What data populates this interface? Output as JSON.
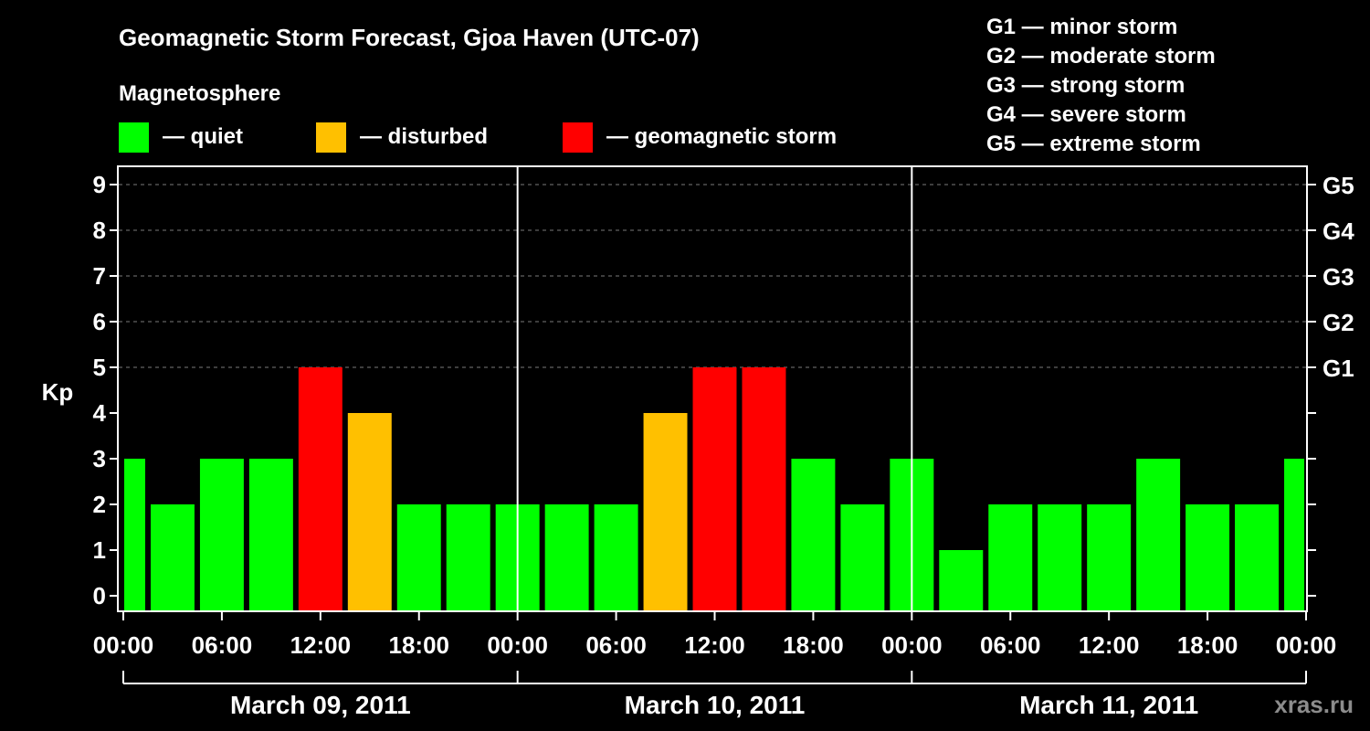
{
  "chart_data": {
    "type": "bar",
    "title": "Geomagnetic Storm Forecast, Gjoa Haven (UTC-07)",
    "ylabel": "Kp",
    "ylim": [
      0,
      9
    ],
    "yticks": [
      "0",
      "1",
      "2",
      "3",
      "4",
      "5",
      "6",
      "7",
      "8",
      "9"
    ],
    "right_ticks": [
      {
        "kp": 5,
        "label": "G1"
      },
      {
        "kp": 6,
        "label": "G2"
      },
      {
        "kp": 7,
        "label": "G3"
      },
      {
        "kp": 8,
        "label": "G4"
      },
      {
        "kp": 9,
        "label": "G5"
      }
    ],
    "x_hours_total": 72,
    "first_bar_start_hour": -1.5,
    "bar_interval_hours": 3,
    "xtick_labels": [
      "00:00",
      "06:00",
      "12:00",
      "18:00",
      "00:00",
      "06:00",
      "12:00",
      "18:00",
      "00:00",
      "06:00",
      "12:00",
      "18:00",
      "00:00"
    ],
    "days": [
      "March 09, 2011",
      "March 10, 2011",
      "March 11, 2011"
    ],
    "values": [
      3,
      2,
      3,
      3,
      5,
      4,
      2,
      2,
      2,
      2,
      2,
      4,
      5,
      5,
      3,
      2,
      3,
      1,
      2,
      2,
      2,
      3,
      2,
      2,
      3
    ],
    "levels": [
      "quiet",
      "quiet",
      "quiet",
      "quiet",
      "storm",
      "disturbed",
      "quiet",
      "quiet",
      "quiet",
      "quiet",
      "quiet",
      "disturbed",
      "storm",
      "storm",
      "quiet",
      "quiet",
      "quiet",
      "quiet",
      "quiet",
      "quiet",
      "quiet",
      "quiet",
      "quiet",
      "quiet",
      "quiet"
    ],
    "colors": {
      "quiet": "#00ff00",
      "disturbed": "#ffc000",
      "storm": "#ff0000"
    },
    "legend": {
      "title": "Magnetosphere",
      "items": [
        {
          "key": "quiet",
          "label": "— quiet"
        },
        {
          "key": "disturbed",
          "label": "— disturbed"
        },
        {
          "key": "storm",
          "label": "— geomagnetic storm"
        }
      ]
    },
    "g_scale": [
      "G1 — minor storm",
      "G2 — moderate storm",
      "G3 — strong storm",
      "G4 — severe storm",
      "G5 — extreme storm"
    ],
    "grid": true
  },
  "watermark": "xras.ru"
}
